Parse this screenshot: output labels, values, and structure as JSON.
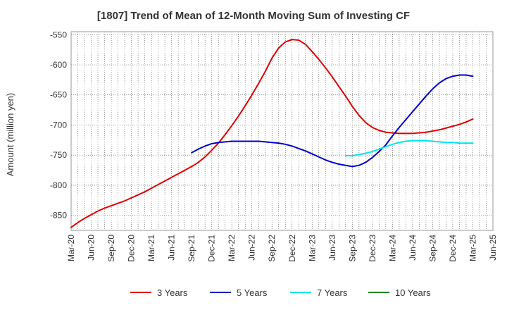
{
  "chart_data": {
    "type": "line",
    "title": "[1807]  Trend of Mean of 12-Month Moving Sum of Investing CF",
    "ylabel": "Amount (million yen)",
    "xlabel": "",
    "ylim": [
      -875,
      -545
    ],
    "yticks": [
      -550,
      -600,
      -650,
      -700,
      -750,
      -800,
      -850
    ],
    "ytick_labels": [
      "-550",
      "-600",
      "-650",
      "-700",
      "-750",
      "-800",
      "-850"
    ],
    "grid": true,
    "legend_position": "bottom",
    "categories": [
      "Mar-20",
      "Jun-20",
      "Sep-20",
      "Dec-20",
      "Mar-21",
      "Jun-21",
      "Sep-21",
      "Dec-21",
      "Mar-22",
      "Jun-22",
      "Sep-22",
      "Dec-22",
      "Mar-23",
      "Jun-23",
      "Sep-23",
      "Dec-23",
      "Mar-24",
      "Jun-24",
      "Sep-24",
      "Dec-24",
      "Mar-25",
      "Jun-25"
    ],
    "series": [
      {
        "name": "3 Years",
        "color": "#dd0000",
        "points": [
          [
            "Mar-20",
            -870
          ],
          [
            "Apr-20",
            -862
          ],
          [
            "May-20",
            -855
          ],
          [
            "Jun-20",
            -849
          ],
          [
            "Jul-20",
            -843
          ],
          [
            "Aug-20",
            -838
          ],
          [
            "Sep-20",
            -834
          ],
          [
            "Oct-20",
            -830
          ],
          [
            "Nov-20",
            -826
          ],
          [
            "Dec-20",
            -821
          ],
          [
            "Jan-21",
            -816
          ],
          [
            "Feb-21",
            -811
          ],
          [
            "Mar-21",
            -805
          ],
          [
            "Apr-21",
            -799
          ],
          [
            "May-21",
            -793
          ],
          [
            "Jun-21",
            -787
          ],
          [
            "Jul-21",
            -781
          ],
          [
            "Aug-21",
            -775
          ],
          [
            "Sep-21",
            -769
          ],
          [
            "Oct-21",
            -762
          ],
          [
            "Nov-21",
            -753
          ],
          [
            "Dec-21",
            -742
          ],
          [
            "Jan-22",
            -730
          ],
          [
            "Feb-22",
            -716
          ],
          [
            "Mar-22",
            -701
          ],
          [
            "Apr-22",
            -685
          ],
          [
            "May-22",
            -668
          ],
          [
            "Jun-22",
            -650
          ],
          [
            "Jul-22",
            -631
          ],
          [
            "Aug-22",
            -611
          ],
          [
            "Sep-22",
            -589
          ],
          [
            "Oct-22",
            -572
          ],
          [
            "Nov-22",
            -562
          ],
          [
            "Dec-22",
            -558
          ],
          [
            "Jan-23",
            -559
          ],
          [
            "Feb-23",
            -566
          ],
          [
            "Mar-23",
            -578
          ],
          [
            "Apr-23",
            -591
          ],
          [
            "May-23",
            -605
          ],
          [
            "Jun-23",
            -620
          ],
          [
            "Jul-23",
            -636
          ],
          [
            "Aug-23",
            -652
          ],
          [
            "Sep-23",
            -669
          ],
          [
            "Oct-23",
            -684
          ],
          [
            "Nov-23",
            -696
          ],
          [
            "Dec-23",
            -704
          ],
          [
            "Jan-24",
            -709
          ],
          [
            "Feb-24",
            -712
          ],
          [
            "Mar-24",
            -713
          ],
          [
            "Apr-24",
            -714
          ],
          [
            "May-24",
            -714
          ],
          [
            "Jun-24",
            -714
          ],
          [
            "Jul-24",
            -713
          ],
          [
            "Aug-24",
            -712
          ],
          [
            "Sep-24",
            -710
          ],
          [
            "Oct-24",
            -708
          ],
          [
            "Nov-24",
            -705
          ],
          [
            "Dec-24",
            -702
          ],
          [
            "Jan-25",
            -699
          ],
          [
            "Feb-25",
            -695
          ],
          [
            "Mar-25",
            -690
          ]
        ]
      },
      {
        "name": "5 Years",
        "color": "#0000cc",
        "points": [
          [
            "Sep-21",
            -746
          ],
          [
            "Oct-21",
            -740
          ],
          [
            "Nov-21",
            -735
          ],
          [
            "Dec-21",
            -731
          ],
          [
            "Jan-22",
            -729
          ],
          [
            "Feb-22",
            -728
          ],
          [
            "Mar-22",
            -727
          ],
          [
            "Apr-22",
            -727
          ],
          [
            "May-22",
            -727
          ],
          [
            "Jun-22",
            -727
          ],
          [
            "Jul-22",
            -727
          ],
          [
            "Aug-22",
            -728
          ],
          [
            "Sep-22",
            -729
          ],
          [
            "Oct-22",
            -730
          ],
          [
            "Nov-22",
            -732
          ],
          [
            "Dec-22",
            -735
          ],
          [
            "Jan-23",
            -739
          ],
          [
            "Feb-23",
            -743
          ],
          [
            "Mar-23",
            -748
          ],
          [
            "Apr-23",
            -753
          ],
          [
            "May-23",
            -758
          ],
          [
            "Jun-23",
            -762
          ],
          [
            "Jul-23",
            -765
          ],
          [
            "Aug-23",
            -767
          ],
          [
            "Sep-23",
            -769
          ],
          [
            "Oct-23",
            -767
          ],
          [
            "Nov-23",
            -762
          ],
          [
            "Dec-23",
            -754
          ],
          [
            "Jan-24",
            -744
          ],
          [
            "Feb-24",
            -733
          ],
          [
            "Mar-24",
            -718
          ],
          [
            "Apr-24",
            -704
          ],
          [
            "May-24",
            -691
          ],
          [
            "Jun-24",
            -678
          ],
          [
            "Jul-24",
            -665
          ],
          [
            "Aug-24",
            -652
          ],
          [
            "Sep-24",
            -640
          ],
          [
            "Oct-24",
            -630
          ],
          [
            "Nov-24",
            -623
          ],
          [
            "Dec-24",
            -619
          ],
          [
            "Jan-25",
            -617
          ],
          [
            "Feb-25",
            -617
          ],
          [
            "Mar-25",
            -619
          ]
        ]
      },
      {
        "name": "7 Years",
        "color": "#00e5ee",
        "points": [
          [
            "Aug-23",
            -751
          ],
          [
            "Sep-23",
            -751
          ],
          [
            "Oct-23",
            -749
          ],
          [
            "Nov-23",
            -747
          ],
          [
            "Dec-23",
            -744
          ],
          [
            "Jan-24",
            -740
          ],
          [
            "Feb-24",
            -736
          ],
          [
            "Mar-24",
            -732
          ],
          [
            "Apr-24",
            -729
          ],
          [
            "May-24",
            -727
          ],
          [
            "Jun-24",
            -726
          ],
          [
            "Jul-24",
            -726
          ],
          [
            "Aug-24",
            -726
          ],
          [
            "Sep-24",
            -727
          ],
          [
            "Oct-24",
            -728
          ],
          [
            "Nov-24",
            -729
          ],
          [
            "Dec-24",
            -729
          ],
          [
            "Jan-25",
            -730
          ],
          [
            "Feb-25",
            -730
          ],
          [
            "Mar-25",
            -730
          ]
        ]
      },
      {
        "name": "10 Years",
        "color": "#228822",
        "points": []
      }
    ]
  }
}
